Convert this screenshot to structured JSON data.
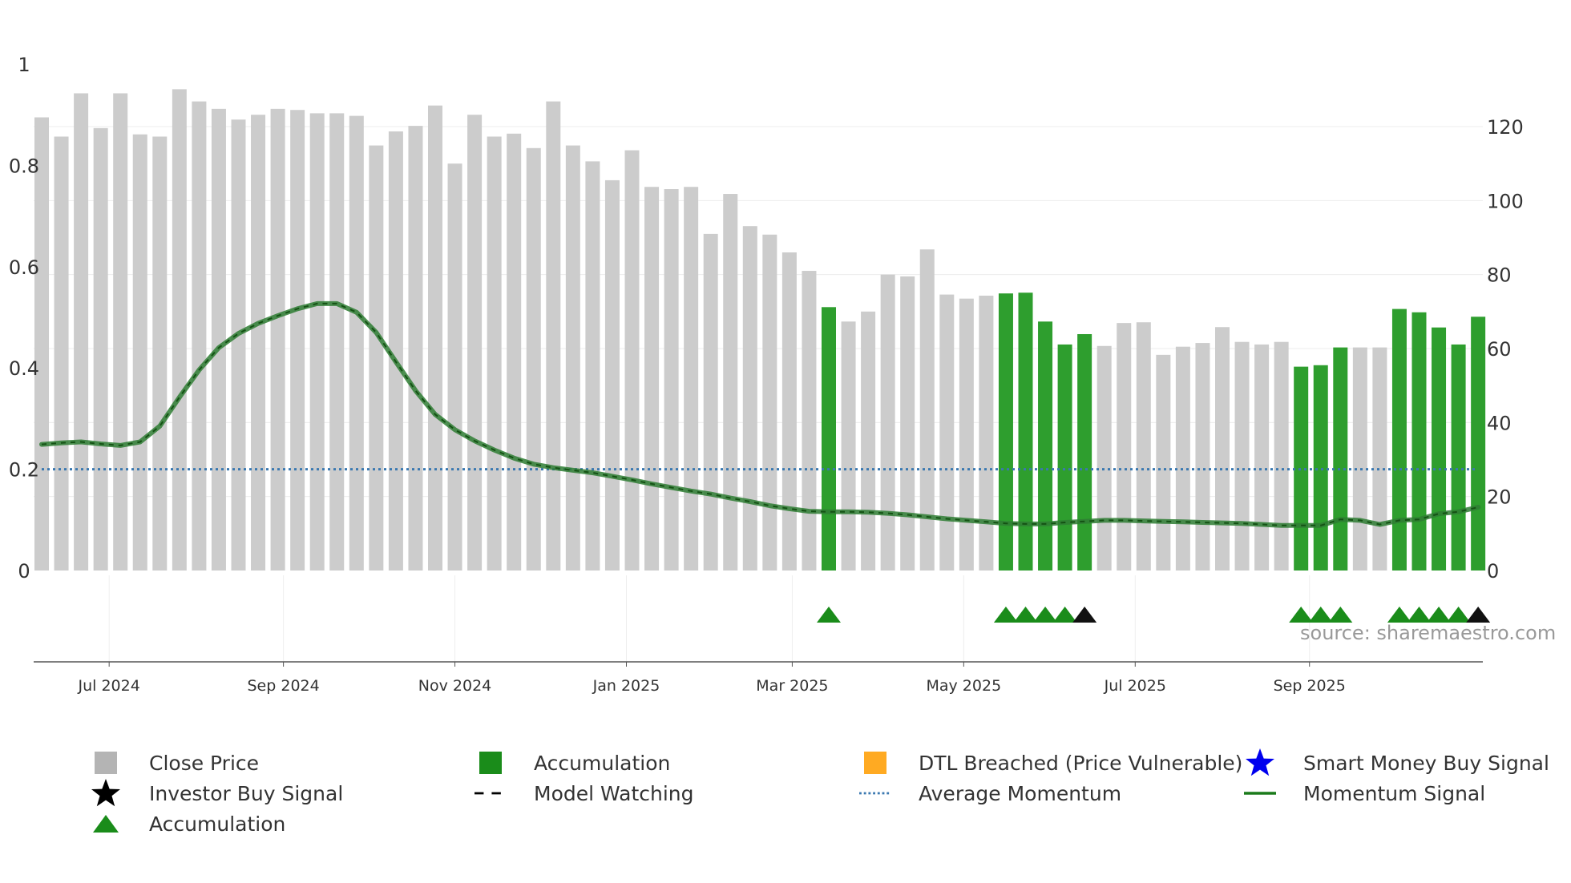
{
  "chart_data": {
    "type": "bar",
    "source_note": "source: sharemaestro.com",
    "y_left_ticks": [
      "0",
      "0.2",
      "0.4",
      "0.6",
      "0.8",
      "1"
    ],
    "y_left_range": [
      0,
      1
    ],
    "y_right_ticks": [
      "0",
      "20",
      "40",
      "60",
      "80",
      "100",
      "120"
    ],
    "y_right_range": [
      0,
      137
    ],
    "x_tick_labels": [
      {
        "label": "Jul 2024",
        "date": "2024-07-01"
      },
      {
        "label": "Sep 2024",
        "date": "2024-09-01"
      },
      {
        "label": "Nov 2024",
        "date": "2024-11-01"
      },
      {
        "label": "Jan 2025",
        "date": "2025-01-01"
      },
      {
        "label": "Mar 2025",
        "date": "2025-03-01"
      },
      {
        "label": "May 2025",
        "date": "2025-05-01"
      },
      {
        "label": "Jul 2025",
        "date": "2025-07-01"
      },
      {
        "label": "Sep 2025",
        "date": "2025-09-01"
      }
    ],
    "first_week": "2024-06-07",
    "close_price": [
      122.5,
      117.3,
      129.0,
      119.6,
      129.0,
      117.9,
      117.3,
      130.1,
      126.8,
      124.8,
      121.9,
      123.2,
      124.8,
      124.5,
      123.6,
      123.6,
      122.9,
      114.9,
      118.7,
      120.2,
      125.7,
      110.0,
      123.2,
      117.3,
      118.1,
      114.2,
      126.8,
      114.9,
      110.6,
      105.5,
      113.6,
      103.7,
      103.1,
      103.7,
      91.0,
      101.8,
      93.1,
      90.8,
      86.0,
      81.0,
      71.2,
      67.3,
      70.0,
      80.0,
      79.5,
      86.8,
      74.6,
      73.5,
      74.3,
      74.9,
      75.1,
      67.3,
      61.1,
      63.9,
      60.7,
      66.9,
      67.1,
      58.3,
      60.5,
      61.5,
      65.8,
      61.8,
      61.1,
      61.8,
      55.1,
      55.5,
      60.3,
      60.3,
      60.3,
      70.7,
      69.8,
      65.7,
      61.1,
      68.6
    ],
    "accumulation_weeks": [
      40,
      49,
      50,
      51,
      52,
      53,
      64,
      65,
      66,
      69,
      70,
      71,
      72,
      73
    ],
    "momentum_signal": [
      0.249,
      0.252,
      0.254,
      0.25,
      0.247,
      0.254,
      0.285,
      0.342,
      0.396,
      0.44,
      0.468,
      0.488,
      0.503,
      0.517,
      0.527,
      0.527,
      0.51,
      0.47,
      0.412,
      0.355,
      0.308,
      0.278,
      0.256,
      0.238,
      0.222,
      0.21,
      0.203,
      0.198,
      0.193,
      0.186,
      0.179,
      0.171,
      0.164,
      0.157,
      0.151,
      0.143,
      0.136,
      0.128,
      0.122,
      0.117,
      0.116,
      0.116,
      0.115,
      0.113,
      0.11,
      0.106,
      0.102,
      0.099,
      0.096,
      0.093,
      0.092,
      0.092,
      0.095,
      0.097,
      0.099,
      0.099,
      0.098,
      0.097,
      0.096,
      0.095,
      0.094,
      0.093,
      0.091,
      0.089,
      0.089,
      0.089,
      0.101,
      0.099,
      0.091,
      0.099,
      0.101,
      0.112,
      0.116,
      0.125
    ],
    "average_momentum": 0.2,
    "accumulation_markers": [
      40,
      49,
      50,
      51,
      52,
      64,
      65,
      66,
      69,
      70,
      71,
      72
    ],
    "investor_buy_markers": [
      53,
      73
    ],
    "legend": [
      {
        "label": "Close Price",
        "symbol": "grey-square-icon",
        "color": "#b4b4b4"
      },
      {
        "label": "Accumulation",
        "symbol": "green-square-icon",
        "color": "#1a8c1a"
      },
      {
        "label": "DTL Breached (Price Vulnerable)",
        "symbol": "orange-square-icon",
        "color": "#ffaa22"
      },
      {
        "label": "Smart Money Buy Signal",
        "symbol": "blue-star-icon",
        "color": "#0000ee"
      },
      {
        "label": "Investor Buy Signal",
        "symbol": "black-star-icon",
        "color": "#000000"
      },
      {
        "label": "Model Watching",
        "symbol": "black-dash-line-icon",
        "color": "#000000"
      },
      {
        "label": "Average Momentum",
        "symbol": "blue-dotted-line-icon",
        "color": "#3a78b0"
      },
      {
        "label": "Momentum Signal",
        "symbol": "green-line-icon",
        "color": "#1a7a1a"
      },
      {
        "label": "Accumulation",
        "symbol": "green-triangle-icon",
        "color": "#1a8c1a"
      }
    ],
    "colors": {
      "close_bar": "#cccccc",
      "accumulation_bar": "#2e9e2e",
      "momentum_line": "#2e7d32",
      "momentum_dash": "#145214",
      "average_line": "#3a78b0",
      "triangle": "#1a8c1a",
      "investor_triangle": "#111111"
    }
  }
}
